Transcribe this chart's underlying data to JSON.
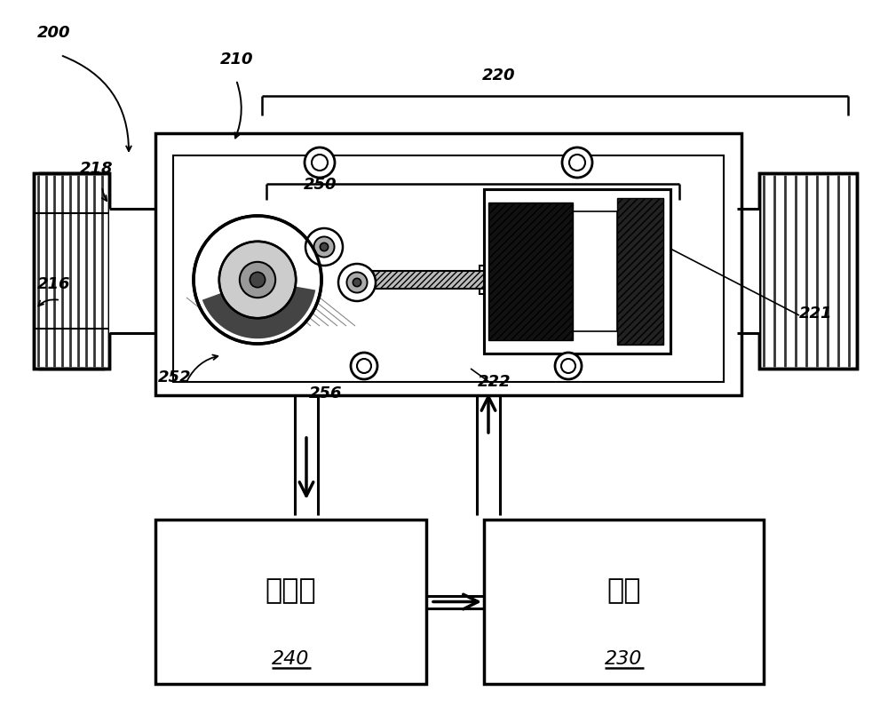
{
  "bg_color": "#ffffff",
  "text_controller": "控制器",
  "text_servo": "伺服",
  "text_240": "240",
  "text_230": "230",
  "lw_thin": 1.2,
  "lw_med": 1.8,
  "lw_thick": 2.5,
  "font_size_label": 13,
  "font_size_box_text": 22,
  "font_size_num": 15
}
